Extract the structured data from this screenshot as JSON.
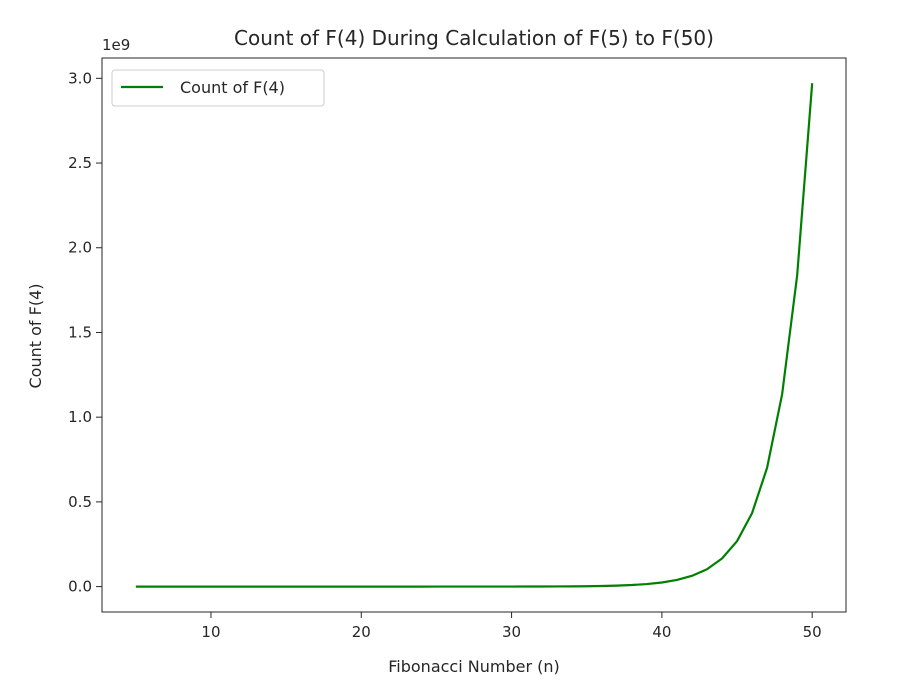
{
  "chart_data": {
    "type": "line",
    "title": "Count of F(4) During Calculation of F(5) to F(50)",
    "xlabel": "Fibonacci Number (n)",
    "ylabel": "Count of F(4)",
    "offset_text": "1e9",
    "xlim": [
      2.75,
      52.25
    ],
    "ylim": [
      -0.15,
      3.12
    ],
    "xticks": [
      10,
      20,
      30,
      40,
      50
    ],
    "yticks": [
      0.0,
      0.5,
      1.0,
      1.5,
      2.0,
      2.5,
      3.0
    ],
    "ytick_labels": [
      "0.0",
      "0.5",
      "1.0",
      "1.5",
      "2.0",
      "2.5",
      "3.0"
    ],
    "legend": {
      "position": "top-left",
      "label": "Count of F(4)"
    },
    "grid": false,
    "series": [
      {
        "name": "Count of F(4)",
        "color": "#008000",
        "x": [
          5,
          6,
          7,
          8,
          9,
          10,
          11,
          12,
          13,
          14,
          15,
          16,
          17,
          18,
          19,
          20,
          21,
          22,
          23,
          24,
          25,
          26,
          27,
          28,
          29,
          30,
          31,
          32,
          33,
          34,
          35,
          36,
          37,
          38,
          39,
          40,
          41,
          42,
          43,
          44,
          45,
          46,
          47,
          48,
          49,
          50
        ],
        "y": [
          1,
          2,
          3,
          5,
          8,
          13,
          21,
          34,
          55,
          89,
          144,
          233,
          377,
          610,
          987,
          1597,
          2584,
          4181,
          6765,
          10946,
          17711,
          28657,
          46368,
          75025,
          121393,
          196418,
          317811,
          514229,
          832040,
          1346269,
          2178309,
          3524578,
          5702887,
          9227465,
          14930352,
          24157817,
          39088169,
          63245986,
          102334155,
          165580141,
          267914296,
          433494437,
          701408733,
          1134903170,
          1836311903,
          2971215073
        ]
      }
    ]
  }
}
